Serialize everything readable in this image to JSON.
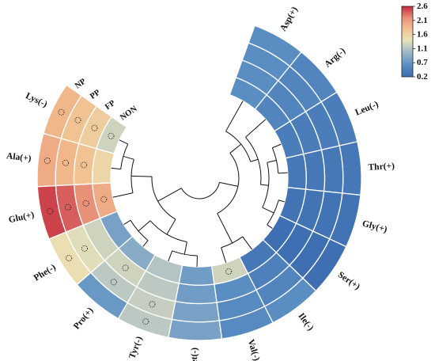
{
  "chart_data": {
    "type": "heatmap",
    "layout": "circular",
    "categories": [
      "Asp(+)",
      "Arg(-)",
      "Leu(-)",
      "Thr(+)",
      "Gly(+)",
      "Ser(+)",
      "Ile(-)",
      "Val(-)",
      "Met(-)",
      "Tyr(-)",
      "Pro(+)",
      "Phe(-)",
      "Glu(+)",
      "Ala(+)",
      "Lys(-)"
    ],
    "rings": [
      "NP",
      "PP",
      "FP",
      "NON"
    ],
    "values": [
      [
        0.6,
        0.6,
        0.6,
        0.6
      ],
      [
        0.5,
        0.5,
        0.5,
        0.5
      ],
      [
        0.4,
        0.4,
        0.4,
        0.4
      ],
      [
        0.35,
        0.35,
        0.35,
        0.35
      ],
      [
        0.3,
        0.3,
        0.3,
        0.3
      ],
      [
        0.25,
        0.25,
        0.25,
        0.25
      ],
      [
        0.6,
        0.5,
        0.45,
        0.35
      ],
      [
        0.55,
        0.55,
        0.6,
        1.3
      ],
      [
        0.8,
        0.8,
        0.75,
        0.75
      ],
      [
        1.2,
        1.25,
        1.2,
        1.15
      ],
      [
        0.7,
        1.2,
        1.3,
        0.9
      ],
      [
        1.5,
        1.4,
        1.3,
        0.8
      ],
      [
        2.5,
        2.4,
        2.2,
        2.0
      ],
      [
        2.0,
        1.9,
        1.8,
        1.6
      ],
      [
        1.9,
        1.8,
        1.7,
        1.3
      ]
    ],
    "significant": [
      [
        0,
        0,
        0,
        0
      ],
      [
        0,
        0,
        0,
        0
      ],
      [
        0,
        0,
        0,
        0
      ],
      [
        0,
        0,
        0,
        0
      ],
      [
        0,
        0,
        0,
        0
      ],
      [
        0,
        0,
        0,
        0
      ],
      [
        0,
        0,
        0,
        0
      ],
      [
        0,
        0,
        0,
        1
      ],
      [
        0,
        0,
        0,
        0
      ],
      [
        1,
        1,
        0,
        0
      ],
      [
        0,
        1,
        1,
        0
      ],
      [
        1,
        1,
        0,
        0
      ],
      [
        1,
        1,
        1,
        1
      ],
      [
        1,
        1,
        1,
        0
      ],
      [
        1,
        1,
        1,
        1
      ]
    ],
    "colorbar": {
      "ticks": [
        "2.6",
        "2.1",
        "1.6",
        "1.1",
        "0.7",
        "0.2"
      ],
      "min": 0.2,
      "max": 2.6
    },
    "colors": [
      "#3a6bb1",
      "#5b8fc3",
      "#9eb8c8",
      "#e9e3b8",
      "#f2c08f",
      "#e88f78",
      "#c2283d"
    ]
  }
}
